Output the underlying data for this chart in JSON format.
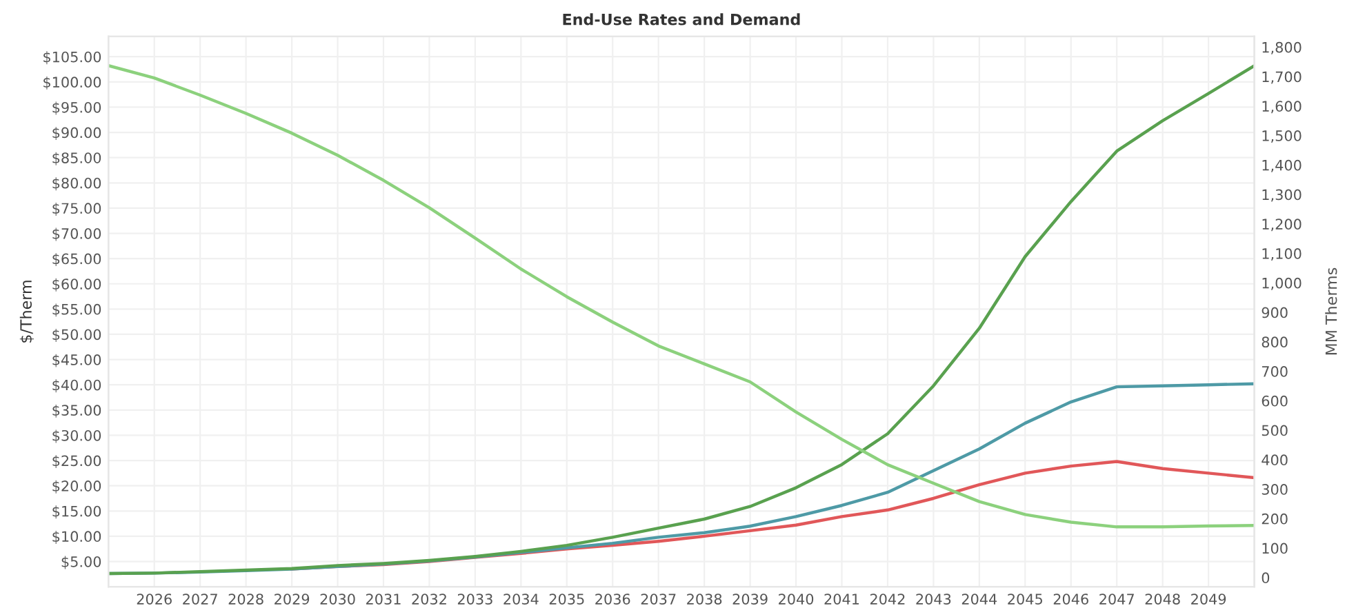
{
  "chart_data": {
    "type": "line",
    "title": "End-Use Rates and Demand",
    "ylabel": "$/Therm",
    "y2label": "MM Therms",
    "x": [
      2025,
      2026,
      2027,
      2028,
      2029,
      2030,
      2031,
      2032,
      2033,
      2034,
      2035,
      2036,
      2037,
      2038,
      2039,
      2040,
      2041,
      2042,
      2043,
      2044,
      2045,
      2046,
      2047,
      2048,
      2049,
      2050
    ],
    "series": [
      {
        "color": "#8cd17d",
        "axis": "y2",
        "values": [
          1737,
          1695,
          1637,
          1575,
          1508,
          1433,
          1348,
          1255,
          1152,
          1047,
          953,
          867,
          786,
          725,
          664,
          562,
          469,
          383,
          320,
          258,
          214,
          188,
          172,
          172,
          175,
          177
        ]
      },
      {
        "color": "#e15759",
        "values": [
          null,
          null,
          null,
          null,
          3.5,
          4.0,
          4.4,
          5.0,
          5.8,
          6.6,
          7.5,
          8.2,
          9.0,
          10.0,
          11.1,
          12.2,
          13.9,
          15.2,
          17.5,
          20.2,
          22.5,
          23.9,
          24.8,
          23.4,
          22.5,
          21.6
        ]
      },
      {
        "color": "#4e9aa6",
        "values": [
          2.6,
          2.7,
          2.9,
          3.2,
          3.5,
          4.0,
          4.5,
          5.1,
          5.9,
          6.8,
          7.7,
          8.6,
          9.8,
          10.7,
          12.0,
          13.9,
          16.1,
          18.7,
          23.0,
          27.3,
          32.4,
          36.6,
          39.6,
          39.8,
          40.0,
          40.2
        ]
      },
      {
        "color": "#59a14f",
        "values": [
          2.6,
          2.7,
          3.0,
          3.3,
          3.6,
          4.2,
          4.6,
          5.2,
          6.0,
          7.0,
          8.2,
          9.8,
          11.6,
          13.4,
          15.9,
          19.6,
          24.2,
          30.3,
          39.8,
          51.2,
          65.4,
          76.3,
          86.3,
          92.3,
          97.7,
          103.2
        ]
      }
    ],
    "xlim": [
      2025,
      2050
    ],
    "xticks": [
      2026,
      2027,
      2028,
      2029,
      2030,
      2031,
      2032,
      2033,
      2034,
      2035,
      2036,
      2037,
      2038,
      2039,
      2040,
      2041,
      2042,
      2043,
      2044,
      2045,
      2046,
      2047,
      2048,
      2049
    ],
    "ylim": [
      0,
      109
    ],
    "yticks": [
      {
        "value": 5,
        "label": "$5.00"
      },
      {
        "value": 10,
        "label": "$10.00"
      },
      {
        "value": 15,
        "label": "$15.00"
      },
      {
        "value": 20,
        "label": "$20.00"
      },
      {
        "value": 25,
        "label": "$25.00"
      },
      {
        "value": 30,
        "label": "$30.00"
      },
      {
        "value": 35,
        "label": "$35.00"
      },
      {
        "value": 40,
        "label": "$40.00"
      },
      {
        "value": 45,
        "label": "$45.00"
      },
      {
        "value": 50,
        "label": "$50.00"
      },
      {
        "value": 55,
        "label": "$55.00"
      },
      {
        "value": 60,
        "label": "$60.00"
      },
      {
        "value": 65,
        "label": "$65.00"
      },
      {
        "value": 70,
        "label": "$70.00"
      },
      {
        "value": 75,
        "label": "$75.00"
      },
      {
        "value": 80,
        "label": "$80.00"
      },
      {
        "value": 85,
        "label": "$85.00"
      },
      {
        "value": 90,
        "label": "$90.00"
      },
      {
        "value": 95,
        "label": "$95.00"
      },
      {
        "value": 100,
        "label": "$100.00"
      },
      {
        "value": 105,
        "label": "$105.00"
      }
    ],
    "y2lim": [
      -31,
      1836
    ],
    "y2ticks": [
      0,
      100,
      200,
      300,
      400,
      500,
      600,
      700,
      800,
      900,
      {
        "value": 1000,
        "label": "1,000"
      },
      {
        "value": 1100,
        "label": "1,100"
      },
      {
        "value": 1200,
        "label": "1,200"
      },
      {
        "value": 1300,
        "label": "1,300"
      },
      {
        "value": 1400,
        "label": "1,400"
      },
      {
        "value": 1500,
        "label": "1,500"
      },
      {
        "value": 1600,
        "label": "1,600"
      },
      {
        "value": 1700,
        "label": "1,700"
      },
      {
        "value": 1800,
        "label": "1,800"
      }
    ],
    "grid": true,
    "marker": "none",
    "line_style": "solid"
  }
}
